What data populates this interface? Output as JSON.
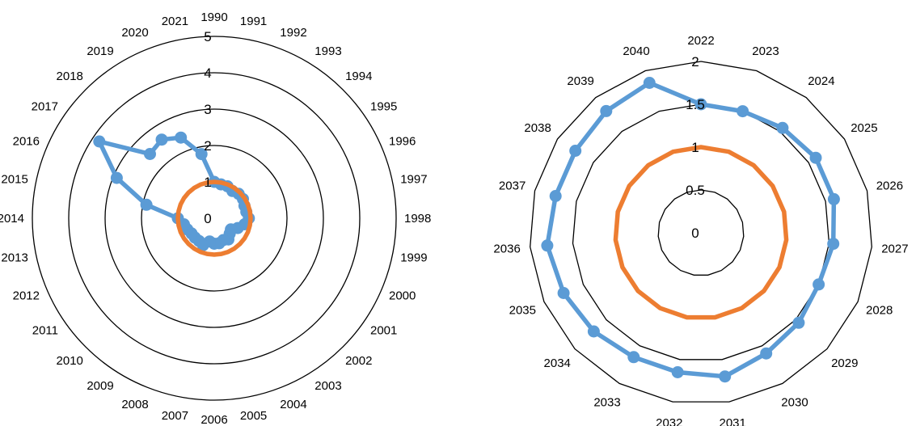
{
  "colors": {
    "series1": "#5B9BD5",
    "series2": "#ED7D31",
    "grid": "#000000"
  },
  "chart_data": [
    {
      "type": "radar",
      "grid_shape": "circle",
      "rlim": [
        0,
        5
      ],
      "ticks": [
        0,
        1,
        2,
        3,
        4,
        5
      ],
      "tick_labels": [
        "0",
        "1",
        "2",
        "3",
        "4",
        "5"
      ],
      "categories": [
        "1990",
        "1991",
        "1992",
        "1993",
        "1994",
        "1995",
        "1996",
        "1997",
        "1998",
        "1999",
        "2000",
        "2001",
        "2002",
        "2003",
        "2004",
        "2005",
        "2006",
        "2007",
        "2008",
        "2009",
        "2010",
        "2011",
        "2012",
        "2013",
        "2014",
        "2015",
        "2016",
        "2017",
        "2018",
        "2019",
        "2020",
        "2021"
      ],
      "series": [
        {
          "values": [
            1.0,
            0.95,
            0.95,
            0.9,
            0.95,
            0.95,
            0.9,
            0.9,
            0.95,
            0.85,
            0.7,
            0.55,
            0.6,
            0.7,
            0.65,
            0.7,
            0.7,
            0.65,
            0.8,
            0.75,
            0.75,
            0.75,
            0.8,
            0.85,
            1.0,
            1.9,
            2.9,
            3.8,
            2.5,
            2.6,
            2.4,
            1.8
          ],
          "color": "#5B9BD5",
          "markers": true
        },
        {
          "values": [
            1,
            1,
            1,
            1,
            1,
            1,
            1,
            1,
            1,
            1,
            1,
            1,
            1,
            1,
            1,
            1,
            1,
            1,
            1,
            1,
            1,
            1,
            1,
            1,
            1,
            1,
            1,
            1,
            1,
            1,
            1,
            1
          ],
          "color": "#ED7D31",
          "markers": false
        }
      ]
    },
    {
      "type": "radar",
      "grid_shape": "polygon",
      "rlim": [
        0,
        2
      ],
      "ticks": [
        0,
        0.5,
        1,
        1.5,
        2
      ],
      "tick_labels": [
        "0",
        "0.5",
        "1",
        "1.5",
        "2"
      ],
      "categories": [
        "2022",
        "2023",
        "2024",
        "2025",
        "2026",
        "2027",
        "2028",
        "2029",
        "2030",
        "2031",
        "2032",
        "2033",
        "2034",
        "2035",
        "2036",
        "2037",
        "2038",
        "2039",
        "2040"
      ],
      "series": [
        {
          "values": [
            1.5,
            1.5,
            1.55,
            1.6,
            1.6,
            1.55,
            1.5,
            1.55,
            1.6,
            1.7,
            1.65,
            1.65,
            1.7,
            1.75,
            1.8,
            1.75,
            1.75,
            1.8,
            1.85
          ],
          "color": "#5B9BD5",
          "markers": true
        },
        {
          "values": [
            1,
            1,
            1,
            1,
            1,
            1,
            1,
            1,
            1,
            1,
            1,
            1,
            1,
            1,
            1,
            1,
            1,
            1,
            1
          ],
          "color": "#ED7D31",
          "markers": false
        }
      ]
    }
  ]
}
